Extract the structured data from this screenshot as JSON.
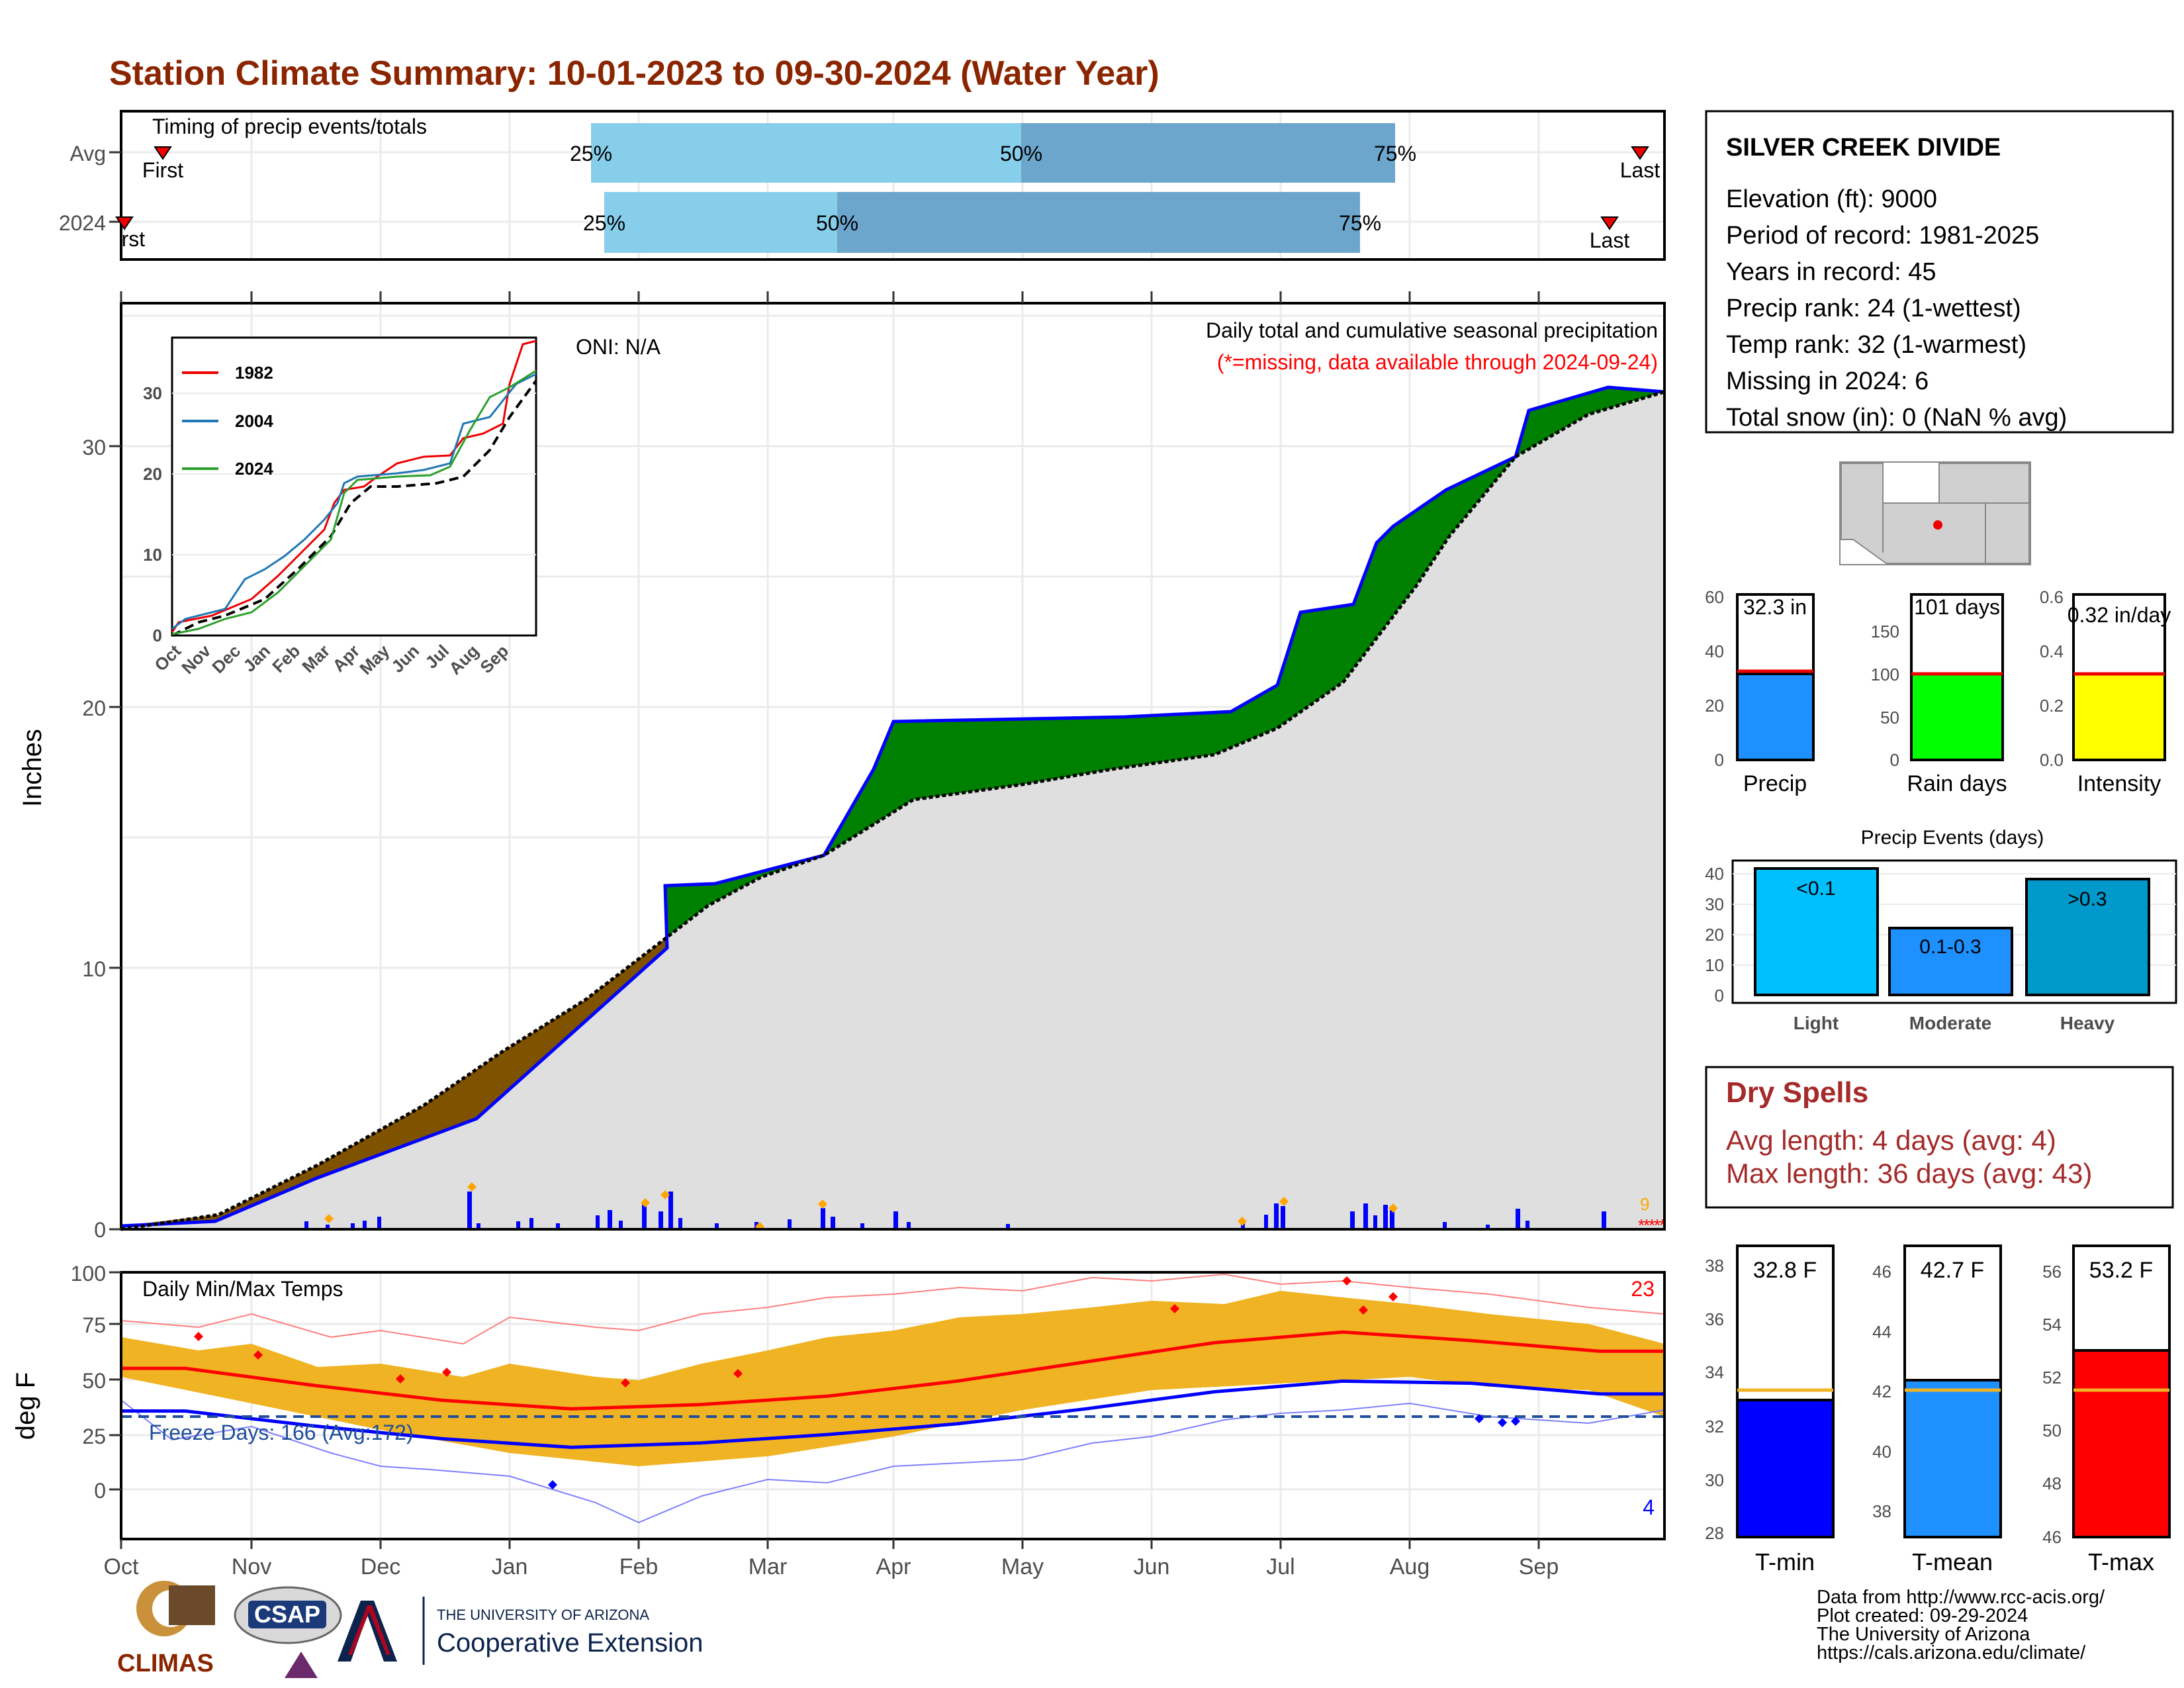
{
  "title": "Station Climate Summary: 10-01-2023 to 09-30-2024 (Water Year)",
  "colors": {
    "title": "#8B2500",
    "below_avg": "#7F5200",
    "above_avg": "#008000",
    "obs_line": "#0000FF",
    "light_blue": "#87CEEB",
    "dark_blue": "#6CA6CD",
    "tmax_avg": "#FF0000",
    "tmin_avg": "#0000FF",
    "temp_bar": "#F0B323",
    "dry_spells": "#A52A2A",
    "precip_bar": "#1E90FF",
    "raindays_bar": "#00FF00",
    "intensity_bar": "#FFFF00",
    "light_events": "#00BFFF",
    "moderate_events": "#1E90FF",
    "heavy_events": "#0099CC"
  },
  "timing_panel": {
    "caption": "Timing of precip events/totals",
    "rows": [
      {
        "label": "Avg",
        "first": "First",
        "last": "Last",
        "p25": "25%",
        "p50": "50%",
        "p75": "75%"
      },
      {
        "label": "2024",
        "first": "First",
        "last": "Last",
        "p25": "25%",
        "p50": "50%",
        "p75": "75%"
      }
    ]
  },
  "station": {
    "name": "SILVER CREEK DIVIDE",
    "lines": [
      "Elevation (ft): 9000",
      "Period of record: 1981-2025",
      "Years in record: 45",
      "Precip rank: 24 (1-wettest)",
      "Temp rank: 32 (1-warmest)",
      "Missing in 2024: 6",
      "Total snow (in): 0 (NaN % avg)"
    ]
  },
  "precip_panel": {
    "ylabel": "Inches",
    "oni": "ONI: N/A",
    "legend_line1": "Daily total and cumulative seasonal precipitation",
    "legend_line2": "(*=missing, data available through 2024-09-24)",
    "y_ticks": [
      "0",
      "10",
      "20",
      "30"
    ],
    "months": [
      "Oct",
      "Nov",
      "Dec",
      "Jan",
      "Feb",
      "Mar",
      "Apr",
      "May",
      "Jun",
      "Jul",
      "Aug",
      "Sep"
    ]
  },
  "inset": {
    "series": [
      "1982",
      "2004",
      "2024"
    ],
    "y_ticks": [
      "0",
      "10",
      "20",
      "30"
    ],
    "months": [
      "Oct",
      "Nov",
      "Dec",
      "Jan",
      "Feb",
      "Mar",
      "Apr",
      "May",
      "Jun",
      "Jul",
      "Aug",
      "Sep"
    ]
  },
  "temp_panel": {
    "ylabel": "deg F",
    "caption": "Daily Min/Max Temps",
    "freeze": "Freeze Days: 166 (Avg:172)",
    "count_high": "23",
    "count_low": "4",
    "y_ticks": [
      "0",
      "25",
      "50",
      "75",
      "100"
    ]
  },
  "summary_bars": [
    {
      "label": "Precip",
      "value_text": "32.3 in",
      "ticks": [
        "0",
        "20",
        "40",
        "60"
      ]
    },
    {
      "label": "Rain days",
      "value_text": "101 days",
      "ticks": [
        "0",
        "50",
        "100",
        "150"
      ]
    },
    {
      "label": "Intensity",
      "value_text": "0.32 in/day",
      "ticks": [
        "0.0",
        "0.2",
        "0.4",
        "0.6"
      ]
    }
  ],
  "events": {
    "title": "Precip Events (days)",
    "ticks": [
      "0",
      "10",
      "20",
      "30",
      "40"
    ],
    "bars": [
      {
        "label": "Light",
        "text": "<0.1"
      },
      {
        "label": "Moderate",
        "text": "0.1-0.3"
      },
      {
        "label": "Heavy",
        "text": ">0.3"
      }
    ]
  },
  "dry_spells": {
    "title": "Dry Spells",
    "avg": "Avg length: 4 days (avg: 4)",
    "max": "Max length: 36 days (avg: 43)"
  },
  "temp_bars": [
    {
      "label": "T-min",
      "value_text": "32.8 F",
      "ticks": [
        "28",
        "30",
        "32",
        "34",
        "36",
        "38"
      ]
    },
    {
      "label": "T-mean",
      "value_text": "42.7 F",
      "ticks": [
        "38",
        "40",
        "42",
        "44",
        "46"
      ]
    },
    {
      "label": "T-max",
      "value_text": "53.2 F",
      "ticks": [
        "46",
        "48",
        "50",
        "52",
        "54",
        "56"
      ]
    }
  ],
  "footer": {
    "lines": [
      "Data from http://www.rcc-acis.org/",
      "Plot created: 09-29-2024",
      "The University of Arizona",
      "https://cals.arizona.edu/climate/"
    ],
    "logo_climas": "CLIMAS",
    "logo_csap": "CSAP",
    "ua_small": "THE UNIVERSITY OF ARIZONA",
    "ua_big": "Cooperative Extension"
  },
  "chart_data": [
    {
      "type": "area",
      "title": "Daily total and cumulative seasonal precipitation",
      "ylabel": "Inches",
      "x": [
        "2023-10-01",
        "2023-11-01",
        "2023-12-01",
        "2024-01-01",
        "2024-02-01",
        "2024-03-01",
        "2024-04-01",
        "2024-05-01",
        "2024-06-01",
        "2024-07-01",
        "2024-08-01",
        "2024-09-01",
        "2024-09-30"
      ],
      "ylim": [
        0,
        35
      ],
      "series": [
        {
          "name": "observed cumulative",
          "values": [
            0,
            0.5,
            1.5,
            4.5,
            11.0,
            13.5,
            19.3,
            19.6,
            20.3,
            23.5,
            28.0,
            30.0,
            32.3
          ]
        },
        {
          "name": "average cumulative",
          "values": [
            0,
            2.5,
            4.8,
            7.8,
            11.0,
            13.8,
            16.2,
            17.3,
            18.4,
            20.0,
            25.0,
            30.0,
            32.0
          ]
        }
      ]
    },
    {
      "type": "line",
      "title": "Daily Min/Max Temps",
      "ylabel": "deg F",
      "ylim": [
        -25,
        100
      ],
      "x": [
        "Oct",
        "Nov",
        "Dec",
        "Jan",
        "Feb",
        "Mar",
        "Apr",
        "May",
        "Jun",
        "Jul",
        "Aug",
        "Sep"
      ],
      "series": [
        {
          "name": "avg max",
          "values": [
            55,
            47,
            40,
            36,
            38,
            42,
            49,
            58,
            67,
            72,
            68,
            63
          ]
        },
        {
          "name": "avg min",
          "values": [
            35,
            28,
            22,
            18,
            20,
            24,
            29,
            36,
            44,
            49,
            48,
            43
          ]
        }
      ]
    },
    {
      "type": "line",
      "title": "",
      "ylim": [
        0,
        35
      ],
      "x": [
        "Oct",
        "Nov",
        "Dec",
        "Jan",
        "Feb",
        "Mar",
        "Apr",
        "May",
        "Jun",
        "Jul",
        "Aug",
        "Sep"
      ],
      "series": [
        {
          "name": "1982",
          "values": [
            1,
            3,
            6,
            10,
            14,
            19,
            24,
            28,
            28,
            30,
            31,
            34
          ]
        },
        {
          "name": "2004",
          "values": [
            2,
            4,
            8,
            9,
            13,
            17,
            22,
            26,
            27,
            28,
            30,
            32
          ]
        },
        {
          "name": "2024",
          "values": [
            0,
            1,
            4,
            7,
            10,
            15,
            19,
            21,
            22,
            25,
            29,
            32
          ]
        }
      ]
    },
    {
      "type": "bar",
      "categories": [
        "Precip",
        "Rain days",
        "Intensity"
      ],
      "series": [
        {
          "name": "value",
          "values": [
            32.3,
            101,
            0.32
          ]
        },
        {
          "name": "average",
          "values": [
            31.5,
            101,
            0.32
          ]
        }
      ]
    },
    {
      "type": "bar",
      "title": "Precip Events (days)",
      "categories": [
        "Light",
        "Moderate",
        "Heavy"
      ],
      "values": [
        41,
        22,
        38
      ],
      "ylim": [
        0,
        45
      ]
    },
    {
      "type": "bar",
      "categories": [
        "T-min",
        "T-mean",
        "T-max"
      ],
      "series": [
        {
          "name": "value",
          "values": [
            32.8,
            42.7,
            53.2
          ]
        },
        {
          "name": "average",
          "values": [
            33.2,
            42.4,
            51.5
          ]
        }
      ]
    }
  ]
}
